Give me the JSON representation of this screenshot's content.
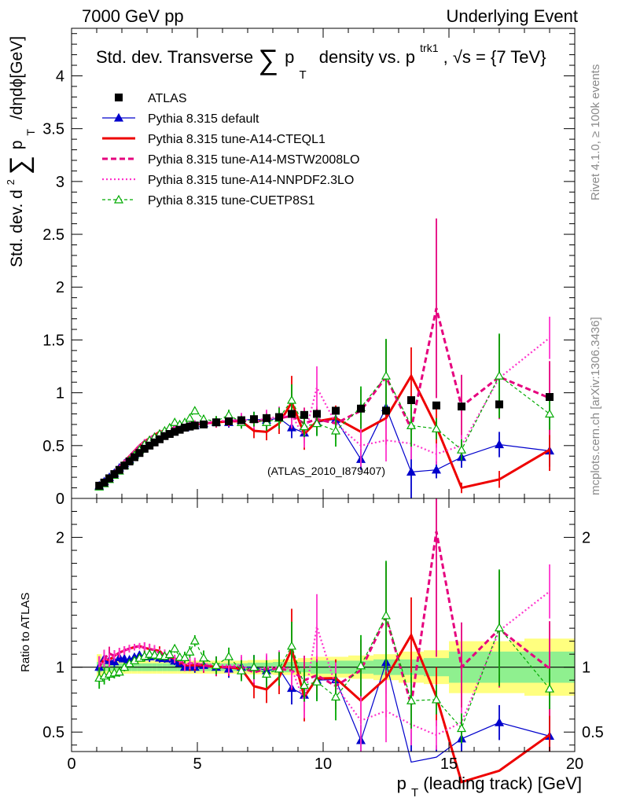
{
  "header": {
    "left": "7000 GeV pp",
    "right": "Underlying Event"
  },
  "side_labels": {
    "top": "Rivet 4.1.0, ≥ 100k events",
    "bottom": "mcplots.cern.ch [arXiv:1306.3436]"
  },
  "chart_data": {
    "type": "scatter",
    "title": "Std. dev. Transverse Σ pT density vs. pT trk1, √s = {7 TeV}",
    "title_parts": {
      "a": "Std. dev. Transverse",
      "sigma": "∑",
      "p": "p",
      "T": "T",
      "b": "density vs. p",
      "sup": "trk1",
      "c": ", √s = {7 TeV}"
    },
    "ylabel_parts": {
      "a": "Std. dev. d",
      "sup": "2",
      "sigma": "∑",
      "p": "p",
      "T": "T",
      "b": "/dηdϕ[GeV]"
    },
    "xlabel_parts": {
      "p": "p",
      "T": "T",
      "rest": " (leading track) [GeV]"
    },
    "ratio_ylabel": "Ratio to ATLAS",
    "watermark": "(ATLAS_2010_I879407)",
    "xlim": [
      0,
      20
    ],
    "ylim": [
      0,
      4.45
    ],
    "ratio_ylim": [
      0.35,
      2.3
    ],
    "x_ticks": [
      0,
      5,
      10,
      15,
      20
    ],
    "x_tick_labels": [
      "0",
      "5",
      "10",
      "15",
      "20"
    ],
    "y_ticks": [
      0,
      0.5,
      1,
      1.5,
      2,
      2.5,
      3,
      3.5,
      4
    ],
    "y_tick_labels": [
      "0",
      "0.5",
      "1",
      "1.5",
      "2",
      "2.5",
      "3",
      "3.5",
      "4"
    ],
    "ratio_ticks": [
      0.5,
      1,
      2
    ],
    "ratio_tick_labels": [
      "0.5",
      "1",
      "2"
    ],
    "x": [
      1.1,
      1.3,
      1.5,
      1.7,
      1.9,
      2.1,
      2.3,
      2.5,
      2.7,
      2.9,
      3.1,
      3.3,
      3.5,
      3.7,
      3.9,
      4.1,
      4.3,
      4.5,
      4.7,
      4.9,
      5.25,
      5.75,
      6.25,
      6.75,
      7.25,
      7.75,
      8.25,
      8.75,
      9.25,
      9.75,
      10.5,
      11.5,
      12.5,
      13.5,
      14.5,
      15.5,
      17,
      19
    ],
    "data": {
      "name": "ATLAS",
      "values": [
        0.12,
        0.15,
        0.19,
        0.23,
        0.27,
        0.31,
        0.35,
        0.39,
        0.43,
        0.47,
        0.5,
        0.53,
        0.56,
        0.59,
        0.61,
        0.63,
        0.65,
        0.67,
        0.68,
        0.69,
        0.7,
        0.72,
        0.73,
        0.74,
        0.75,
        0.76,
        0.77,
        0.8,
        0.79,
        0.8,
        0.83,
        0.85,
        0.83,
        0.93,
        0.88,
        0.87,
        0.89,
        0.96
      ],
      "band_inner": [
        0.04,
        0.03,
        0.03,
        0.03,
        0.03,
        0.03,
        0.03,
        0.03,
        0.03,
        0.03,
        0.03,
        0.03,
        0.03,
        0.03,
        0.03,
        0.03,
        0.03,
        0.03,
        0.03,
        0.03,
        0.03,
        0.03,
        0.03,
        0.03,
        0.035,
        0.035,
        0.04,
        0.04,
        0.04,
        0.05,
        0.05,
        0.05,
        0.06,
        0.06,
        0.07,
        0.12,
        0.12,
        0.12
      ],
      "band_outer": [
        0.1,
        0.06,
        0.05,
        0.05,
        0.05,
        0.05,
        0.05,
        0.05,
        0.05,
        0.05,
        0.05,
        0.05,
        0.05,
        0.05,
        0.05,
        0.05,
        0.05,
        0.05,
        0.05,
        0.05,
        0.05,
        0.05,
        0.05,
        0.05,
        0.055,
        0.055,
        0.06,
        0.06,
        0.07,
        0.08,
        0.08,
        0.09,
        0.1,
        0.12,
        0.13,
        0.2,
        0.2,
        0.22
      ]
    },
    "series": [
      {
        "name": "Pythia 8.315 default",
        "color": "#0000cc",
        "marker": "triangle-filled",
        "dash": "solid",
        "width": 1.2,
        "values": [
          0.12,
          0.16,
          0.2,
          0.24,
          0.29,
          0.33,
          0.37,
          0.42,
          0.47,
          0.51,
          0.54,
          0.58,
          0.6,
          0.63,
          0.65,
          0.66,
          0.67,
          0.67,
          0.69,
          0.69,
          0.71,
          0.72,
          0.72,
          0.74,
          0.75,
          0.74,
          0.76,
          0.67,
          0.62,
          0.72,
          0.75,
          0.37,
          0.86,
          0.25,
          0.27,
          0.39,
          0.51,
          0.45
        ],
        "err": [
          0.01,
          0.01,
          0.01,
          0.01,
          0.01,
          0.01,
          0.01,
          0.01,
          0.01,
          0.01,
          0.02,
          0.02,
          0.02,
          0.02,
          0.02,
          0.02,
          0.02,
          0.02,
          0.03,
          0.03,
          0.03,
          0.04,
          0.05,
          0.06,
          0.07,
          0.08,
          0.1,
          0.1,
          0.1,
          0.12,
          0.1,
          0.1,
          0.2,
          0.3,
          0.08,
          0.1,
          0.12,
          0.15
        ]
      },
      {
        "name": "Pythia 8.315 tune-A14-CTEQL1",
        "color": "#ee0000",
        "marker": "none",
        "dash": "solid",
        "width": 3,
        "values": [
          0.12,
          0.16,
          0.2,
          0.25,
          0.3,
          0.35,
          0.4,
          0.45,
          0.5,
          0.54,
          0.57,
          0.6,
          0.63,
          0.64,
          0.66,
          0.67,
          0.68,
          0.68,
          0.69,
          0.7,
          0.71,
          0.72,
          0.73,
          0.73,
          0.64,
          0.63,
          0.71,
          0.91,
          0.61,
          0.73,
          0.76,
          0.63,
          0.76,
          1.16,
          0.68,
          0.1,
          0.18,
          0.46
        ],
        "err": [
          0.01,
          0.01,
          0.01,
          0.01,
          0.01,
          0.01,
          0.01,
          0.01,
          0.01,
          0.02,
          0.02,
          0.02,
          0.02,
          0.02,
          0.02,
          0.02,
          0.02,
          0.03,
          0.03,
          0.03,
          0.04,
          0.05,
          0.05,
          0.06,
          0.07,
          0.08,
          0.1,
          0.25,
          0.15,
          0.1,
          0.12,
          0.15,
          0.25,
          0.27,
          0.2,
          0.05,
          0.08,
          0.2
        ]
      },
      {
        "name": "Pythia 8.315 tune-A14-MSTW2008LO",
        "color": "#e6007e",
        "marker": "none",
        "dash": "7,4",
        "width": 3,
        "values": [
          0.12,
          0.16,
          0.21,
          0.25,
          0.3,
          0.35,
          0.4,
          0.45,
          0.5,
          0.54,
          0.57,
          0.6,
          0.62,
          0.65,
          0.66,
          0.67,
          0.69,
          0.68,
          0.7,
          0.71,
          0.71,
          0.72,
          0.73,
          0.74,
          0.72,
          0.75,
          0.76,
          0.78,
          0.71,
          0.75,
          0.71,
          0.83,
          1.15,
          0.66,
          1.8,
          0.87,
          1.15,
          0.95
        ],
        "err": [
          0.01,
          0.01,
          0.01,
          0.01,
          0.01,
          0.01,
          0.01,
          0.01,
          0.01,
          0.02,
          0.02,
          0.02,
          0.02,
          0.02,
          0.02,
          0.02,
          0.02,
          0.03,
          0.03,
          0.03,
          0.04,
          0.05,
          0.05,
          0.06,
          0.07,
          0.08,
          0.1,
          0.12,
          0.15,
          0.12,
          0.15,
          0.2,
          0.35,
          0.2,
          0.85,
          0.3,
          0.4,
          0.35
        ]
      },
      {
        "name": "Pythia 8.315 tune-A14-NNPDF2.3LO",
        "color": "#ff33cc",
        "marker": "none",
        "dash": "2,3",
        "width": 2.2,
        "values": [
          0.12,
          0.16,
          0.2,
          0.25,
          0.3,
          0.35,
          0.4,
          0.45,
          0.5,
          0.54,
          0.57,
          0.6,
          0.62,
          0.65,
          0.66,
          0.67,
          0.69,
          0.68,
          0.7,
          0.71,
          0.72,
          0.73,
          0.74,
          0.75,
          0.73,
          0.76,
          0.77,
          0.79,
          0.58,
          1.05,
          0.71,
          0.5,
          0.55,
          0.52,
          0.42,
          0.5,
          1.14,
          1.52
        ],
        "err": [
          0.01,
          0.01,
          0.01,
          0.01,
          0.01,
          0.01,
          0.01,
          0.01,
          0.01,
          0.02,
          0.02,
          0.02,
          0.02,
          0.02,
          0.02,
          0.02,
          0.02,
          0.03,
          0.03,
          0.03,
          0.04,
          0.05,
          0.05,
          0.06,
          0.07,
          0.08,
          0.1,
          0.12,
          0.1,
          0.2,
          0.15,
          0.2,
          0.2,
          0.15,
          0.1,
          0.1,
          0.3,
          0.2
        ]
      },
      {
        "name": "Pythia 8.315 tune-CUETP8S1",
        "color": "#00aa00",
        "marker": "triangle-open",
        "dash": "4,3",
        "width": 1.2,
        "values": [
          0.11,
          0.14,
          0.18,
          0.22,
          0.26,
          0.31,
          0.36,
          0.41,
          0.46,
          0.51,
          0.55,
          0.58,
          0.61,
          0.64,
          0.67,
          0.72,
          0.7,
          0.72,
          0.76,
          0.83,
          0.75,
          0.73,
          0.79,
          0.72,
          0.75,
          0.72,
          0.76,
          0.93,
          0.68,
          0.71,
          0.64,
          0.86,
          1.16,
          0.69,
          0.66,
          0.46,
          1.16,
          0.8
        ],
        "err": [
          0.01,
          0.01,
          0.01,
          0.01,
          0.01,
          0.01,
          0.01,
          0.01,
          0.01,
          0.02,
          0.02,
          0.02,
          0.02,
          0.02,
          0.02,
          0.02,
          0.02,
          0.03,
          0.03,
          0.03,
          0.04,
          0.05,
          0.05,
          0.06,
          0.07,
          0.08,
          0.1,
          0.15,
          0.1,
          0.12,
          0.15,
          0.2,
          0.35,
          0.2,
          0.1,
          0.1,
          0.4,
          0.15
        ]
      }
    ],
    "legend_position": "top-left"
  }
}
